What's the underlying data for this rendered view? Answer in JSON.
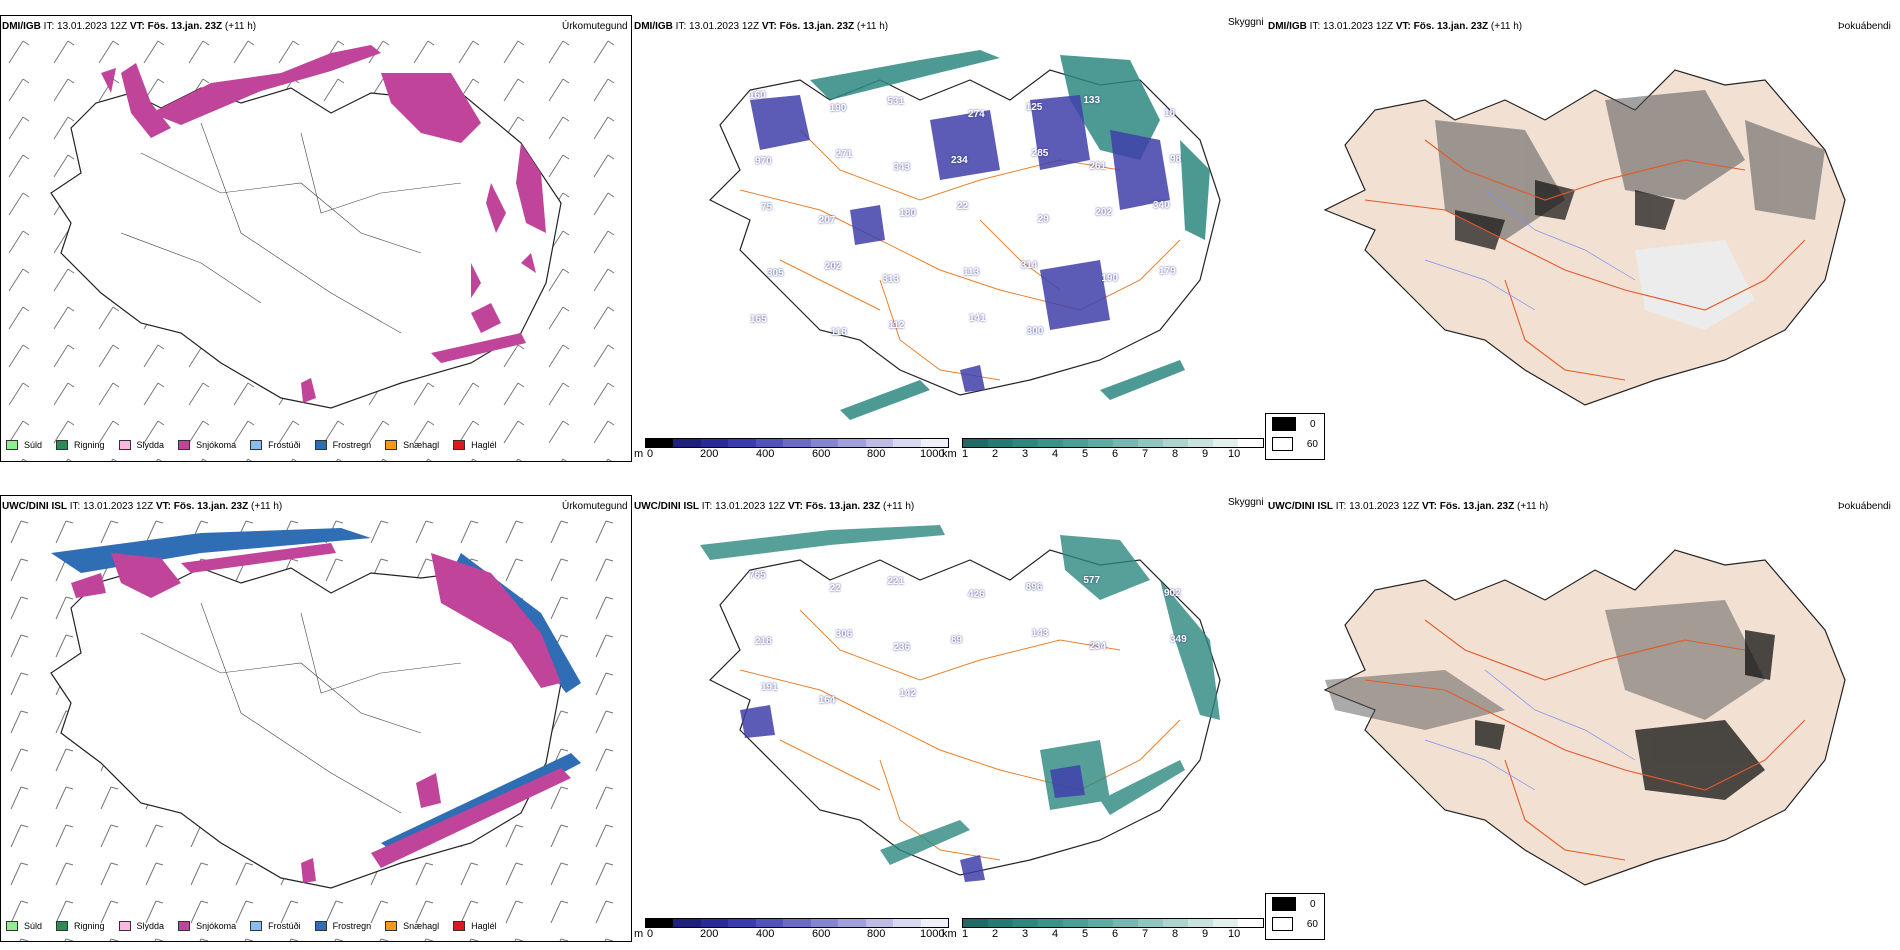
{
  "panels": [
    {
      "model": "DMI/IGB",
      "it_label": "IT:",
      "it": "13.01.2023 12Z",
      "vt_label": "VT:",
      "vt": "Fös. 13.jan. 23Z",
      "lead": "(+11 h)",
      "field": "Úrkomutegund"
    },
    {
      "model": "DMI/IGB",
      "it_label": "IT:",
      "it": "13.01.2023 12Z",
      "vt_label": "VT:",
      "vt": "Fös. 13.jan. 23Z",
      "lead": "(+11 h)",
      "field": "Skyggni"
    },
    {
      "model": "DMI/IGB",
      "it_label": "IT:",
      "it": "13.01.2023 12Z",
      "vt_label": "VT:",
      "vt": "Fös. 13.jan. 23Z",
      "lead": "(+11 h)",
      "field": "Þokuábendi"
    },
    {
      "model": "UWC/DINI ISL",
      "it_label": "IT:",
      "it": "13.01.2023 12Z",
      "vt_label": "VT:",
      "vt": "Fös. 13.jan. 23Z",
      "lead": "(+11 h)",
      "field": "Úrkomutegund"
    },
    {
      "model": "UWC/DINI ISL",
      "it_label": "IT:",
      "it": "13.01.2023 12Z",
      "vt_label": "VT:",
      "vt": "Fös. 13.jan. 23Z",
      "lead": "(+11 h)",
      "field": "Skyggni"
    },
    {
      "model": "UWC/DINI ISL",
      "it_label": "IT:",
      "it": "13.01.2023 12Z",
      "vt_label": "VT:",
      "vt": "Fös. 13.jan. 23Z",
      "lead": "(+11 h)",
      "field": "Þokuábendi"
    }
  ],
  "precip_legend": [
    {
      "label": "Súld",
      "color": "#90ee90"
    },
    {
      "label": "Rigning",
      "color": "#2e8b57"
    },
    {
      "label": "Slydda",
      "color": "#ffb6e1"
    },
    {
      "label": "Snjókoma",
      "color": "#c0449a"
    },
    {
      "label": "Frostúði",
      "color": "#87bdf0"
    },
    {
      "label": "Frostregn",
      "color": "#2f6db5"
    },
    {
      "label": "Snæhagl",
      "color": "#f39a1d"
    },
    {
      "label": "Haglél",
      "color": "#e0181c"
    }
  ],
  "vis_m": {
    "unit": "m",
    "ticks": [
      "0",
      "200",
      "400",
      "600",
      "800",
      "1000"
    ],
    "colors": [
      "#000000",
      "#1f1f80",
      "#2a2a9a",
      "#3b3bb0",
      "#5252bc",
      "#6b6bc6",
      "#8585d0",
      "#a0a0da",
      "#bcbce6",
      "#d8d8f0",
      "#f0f0fa"
    ]
  },
  "vis_km": {
    "unit": "km",
    "ticks": [
      "1",
      "2",
      "3",
      "4",
      "5",
      "6",
      "7",
      "8",
      "9",
      "10"
    ],
    "colors": [
      "#1d6b66",
      "#247a74",
      "#2d8880",
      "#3a948c",
      "#4aa098",
      "#5eaca4",
      "#76b8b1",
      "#90c6c0",
      "#acd4cf",
      "#c8e2de",
      "#e4f0ee",
      "#ffffff"
    ]
  },
  "fog_legend": {
    "rows": [
      {
        "label": "0",
        "color": "#000000"
      },
      {
        "label": "60",
        "color": "#ffffff"
      }
    ]
  },
  "top_vis_labels": [
    "160",
    "190",
    "531",
    "274",
    "125",
    "133",
    "18",
    "970",
    "271",
    "343",
    "234",
    "285",
    "261",
    "98",
    "75",
    "207",
    "180",
    "22",
    "29",
    "202",
    "340",
    "305",
    "202",
    "313",
    "113",
    "314",
    "190",
    "179",
    "165",
    "118",
    "112",
    "141",
    "300"
  ],
  "bottom_vis_labels": [
    "765",
    "22",
    "221",
    "426",
    "896",
    "577",
    "902",
    "218",
    "306",
    "236",
    "89",
    "143",
    "234",
    "349",
    "191",
    "164",
    "142"
  ]
}
